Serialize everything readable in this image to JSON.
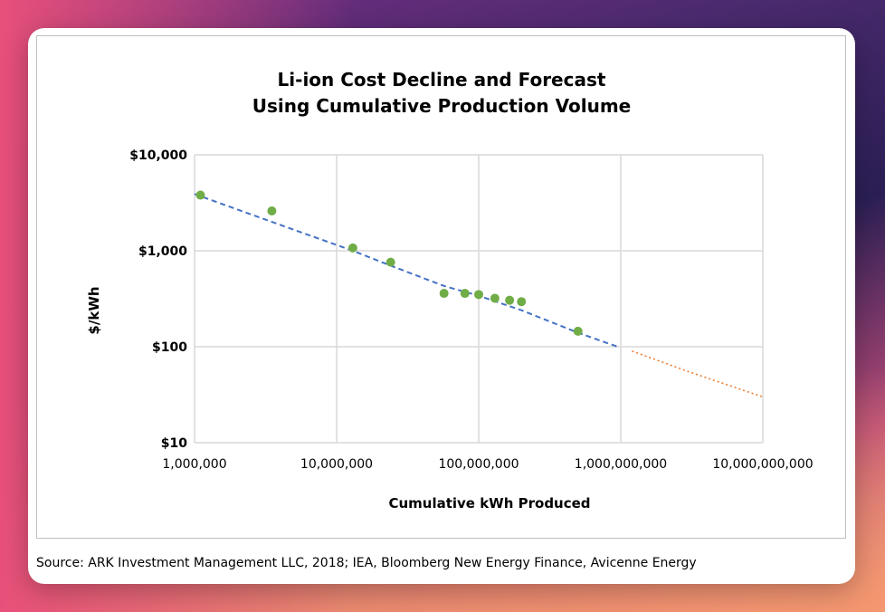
{
  "chart_data": {
    "type": "scatter",
    "title": "Li-ion Cost Decline and Forecast",
    "subtitle": "Using Cumulative Production Volume",
    "xlabel": "Cumulative kWh Produced",
    "ylabel": "$/kWh",
    "x_scale": "log",
    "y_scale": "log",
    "xlim": [
      1000000,
      10000000000
    ],
    "ylim": [
      10,
      10000
    ],
    "x_ticks": [
      1000000,
      10000000,
      100000000,
      1000000000,
      10000000000
    ],
    "x_tick_labels": [
      "1,000,000",
      "10,000,000",
      "100,000,000",
      "1,000,000,000",
      "10,000,000,000"
    ],
    "y_ticks": [
      10,
      100,
      1000,
      10000
    ],
    "y_tick_labels": [
      "$10",
      "$100",
      "$1,000",
      "$10,000"
    ],
    "grid": true,
    "colors": {
      "points": "#70ad47",
      "trend": "#4472c4",
      "forecast": "#ed7d31"
    },
    "series": [
      {
        "type": "scatter",
        "x": [
          1100000,
          3500000,
          13000000,
          24000000,
          57000000,
          80000000,
          100000000,
          130000000,
          165000000,
          200000000,
          500000000
        ],
        "y": [
          3800,
          2600,
          1070,
          760,
          360,
          360,
          350,
          320,
          305,
          295,
          145
        ]
      },
      {
        "type": "line",
        "style": "dashed",
        "x": [
          1000000,
          3500000,
          13000000,
          24000000,
          57000000,
          100000000,
          200000000,
          500000000,
          950000000
        ],
        "y": [
          3900,
          2000,
          1000,
          700,
          430,
          340,
          240,
          140,
          100
        ]
      },
      {
        "type": "line",
        "style": "dotted",
        "x": [
          1200000000,
          3000000000,
          10000000000
        ],
        "y": [
          90,
          55,
          30
        ]
      }
    ]
  },
  "source": "Source: ARK Investment Management LLC, 2018; IEA, Bloomberg New Energy Finance, Avicenne Energy"
}
